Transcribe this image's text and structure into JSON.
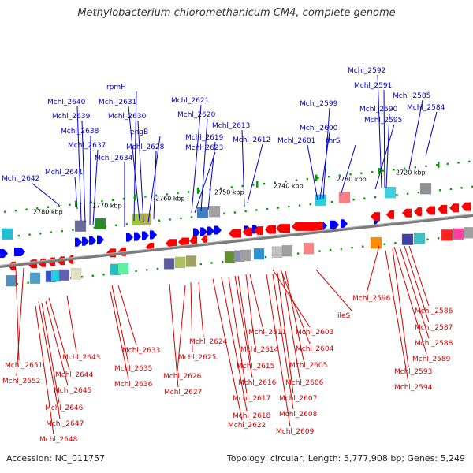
{
  "title": "Methylobacterium chloromethanicum CM4, complete genome",
  "footer": {
    "accession": "Accession: NC_011757",
    "topology": "Topology: circular; Length: 5,777,908 bp; Genes: 5,249"
  },
  "colors": {
    "forward_labels": "#0000c8",
    "reverse_labels": "#d40000",
    "forward_genes": "#0000ff",
    "reverse_genes": "#ff0000",
    "backbone": "#808080",
    "ruler": "#00a000"
  },
  "ruler_labels": [
    "2780 kbp",
    "2770 kbp",
    "2760 kbp",
    "2750 kbp",
    "2740 kbp",
    "2730 kbp",
    "2720 kbp"
  ],
  "forward_genes": [
    "Mchl_2642",
    "Mchl_2641",
    "Mchl_2640",
    "Mchl_2639",
    "Mchl_2638",
    "Mchl_2637",
    "rpmH",
    "Mchl_2631",
    "Mchl_2630",
    "engB",
    "Mchl_2628",
    "Mchl_2634",
    "Mchl_2621",
    "Mchl_2620",
    "Mchl_2619",
    "Mchl_2623",
    "Mchl_2613",
    "Mchl_2612",
    "Mchl_2599",
    "Mchl_2600",
    "Mchl_2601",
    "thrS",
    "Mchl_2592",
    "Mchl_2591",
    "Mchl_2590",
    "Mchl_2595",
    "Mchl_2585",
    "Mchl_2584"
  ],
  "reverse_genes": [
    "Mchl_2651",
    "Mchl_2652",
    "Mchl_2643",
    "Mchl_2644",
    "Mchl_2645",
    "Mchl_2646",
    "Mchl_2647",
    "Mchl_2648",
    "Mchl_2633",
    "Mchl_2635",
    "Mchl_2636",
    "Mchl_2624",
    "Mchl_2625",
    "Mchl_2626",
    "Mchl_2627",
    "Mchl_2611",
    "Mchl_2614",
    "Mchl_2615",
    "Mchl_2616",
    "Mchl_2617",
    "Mchl_2618",
    "Mchl_2622",
    "Mchl_2603",
    "Mchl_2604",
    "Mchl_2605",
    "Mchl_2606",
    "Mchl_2607",
    "Mchl_2608",
    "Mchl_2609",
    "ileS",
    "Mchl_2596",
    "Mchl_2586",
    "Mchl_2587",
    "Mchl_2588",
    "Mchl_2589",
    "Mchl_2593",
    "Mchl_2594"
  ]
}
